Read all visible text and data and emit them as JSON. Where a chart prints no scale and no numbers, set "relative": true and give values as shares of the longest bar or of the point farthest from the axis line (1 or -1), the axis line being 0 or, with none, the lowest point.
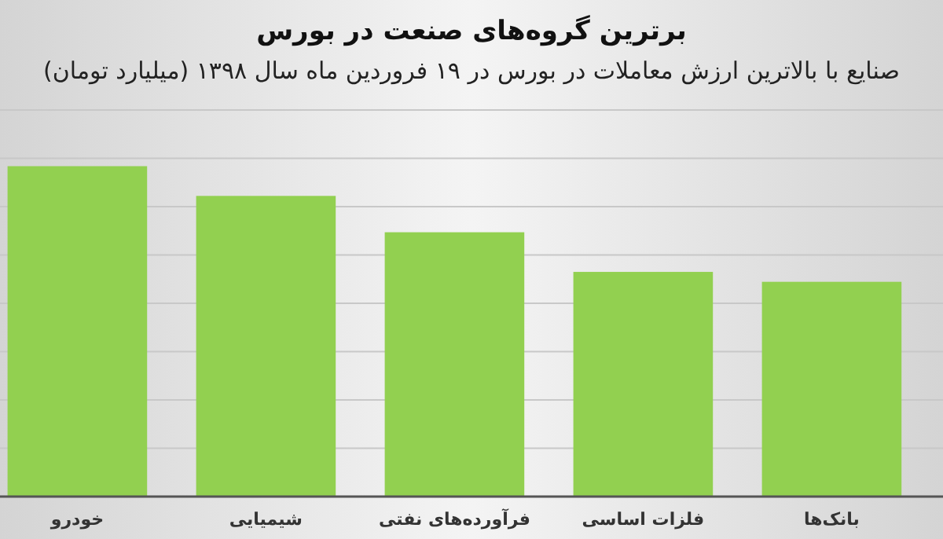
{
  "chart_data": {
    "type": "bar",
    "title": "برترین گروه‌های صنعت در بورس",
    "subtitle": "صنایع با بالاترین ارزش معاملات در بورس در ۱۹ فروردین ماه سال ۱۳۹۸ (میلیارد تومان)",
    "categories": [
      "خودرو",
      "شیمیایی",
      "فرآورده‌های نفتی",
      "فلزات اساسی",
      "بانک‌ها"
    ],
    "values": [
      1,
      0.91,
      0.8,
      0.68,
      0.65
    ],
    "color": "#92d050",
    "relative": true,
    "grid": "y"
  }
}
